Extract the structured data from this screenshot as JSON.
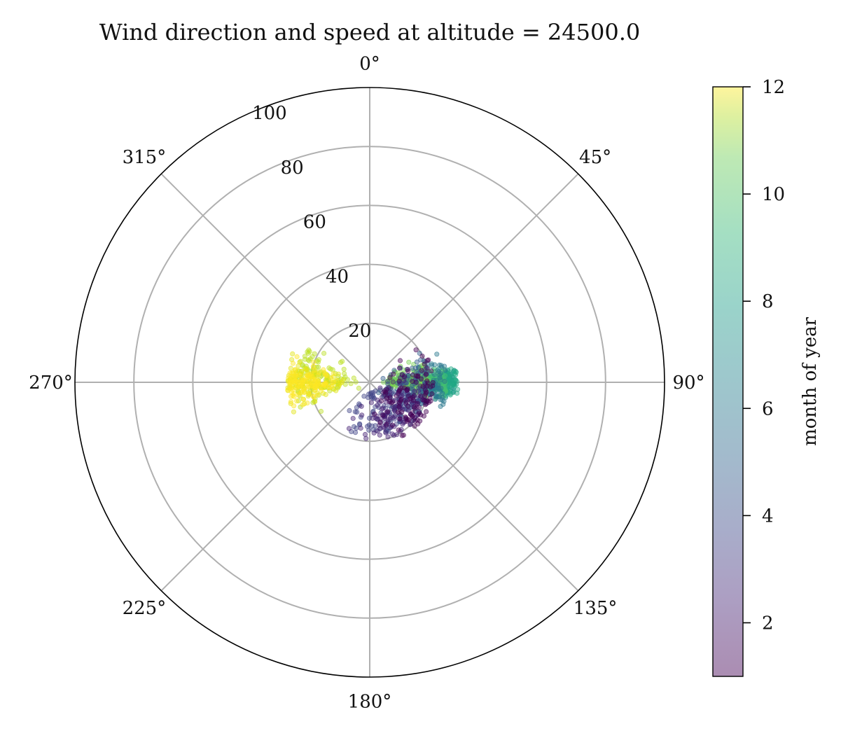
{
  "chart_data": {
    "type": "scatter",
    "subtype": "polar",
    "title": "Wind direction and speed at altitude = 24500.0",
    "theta_direction": "clockwise",
    "theta_zero": "north",
    "theta_ticks": [
      {
        "deg": 0,
        "label": "0°"
      },
      {
        "deg": 45,
        "label": "45°"
      },
      {
        "deg": 90,
        "label": "90°"
      },
      {
        "deg": 135,
        "label": "135°"
      },
      {
        "deg": 180,
        "label": "180°"
      },
      {
        "deg": 225,
        "label": "225°"
      },
      {
        "deg": 270,
        "label": "270°"
      },
      {
        "deg": 315,
        "label": "315°"
      }
    ],
    "r_range": [
      0,
      100
    ],
    "r_ticks": [
      {
        "value": 20,
        "label": "20"
      },
      {
        "value": 40,
        "label": "40"
      },
      {
        "value": 60,
        "label": "60"
      },
      {
        "value": 80,
        "label": "80"
      },
      {
        "value": 100,
        "label": "100"
      }
    ],
    "grid": true,
    "marker_alpha": 0.45,
    "colorbar": {
      "label": "month of year",
      "colormap": "viridis",
      "range": [
        1,
        12
      ],
      "ticks": [
        {
          "value": 2,
          "label": "2"
        },
        {
          "value": 4,
          "label": "4"
        },
        {
          "value": 6,
          "label": "6"
        },
        {
          "value": 8,
          "label": "8"
        },
        {
          "value": 10,
          "label": "10"
        },
        {
          "value": 12,
          "label": "12"
        }
      ],
      "placement": "right"
    },
    "series": [
      {
        "month": 1,
        "color": "#440154",
        "theta_center": 110,
        "theta_spread": 75,
        "r_min": 4,
        "r_max": 22
      },
      {
        "month": 2,
        "color": "#482475",
        "theta_center": 140,
        "theta_spread": 80,
        "r_min": 3,
        "r_max": 20
      },
      {
        "month": 3,
        "color": "#414487",
        "theta_center": 150,
        "theta_spread": 90,
        "r_min": 2,
        "r_max": 18
      },
      {
        "month": 4,
        "color": "#355f8d",
        "theta_center": 100,
        "theta_spread": 60,
        "r_min": 3,
        "r_max": 20
      },
      {
        "month": 5,
        "color": "#2a788e",
        "theta_center": 92,
        "theta_spread": 30,
        "r_min": 6,
        "r_max": 26
      },
      {
        "month": 6,
        "color": "#21908d",
        "theta_center": 90,
        "theta_spread": 16,
        "r_min": 10,
        "r_max": 29
      },
      {
        "month": 7,
        "color": "#22a884",
        "theta_center": 90,
        "theta_spread": 14,
        "r_min": 12,
        "r_max": 30
      },
      {
        "month": 8,
        "color": "#44bf70",
        "theta_center": 90,
        "theta_spread": 16,
        "r_min": 6,
        "r_max": 26
      },
      {
        "month": 9,
        "color": "#7ad151",
        "theta_center": 88,
        "theta_spread": 30,
        "r_min": 2,
        "r_max": 20
      },
      {
        "month": 10,
        "color": "#bddf26",
        "theta_center": 275,
        "theta_spread": 40,
        "r_min": 3,
        "r_max": 25
      },
      {
        "month": 11,
        "color": "#e2e418",
        "theta_center": 270,
        "theta_spread": 25,
        "r_min": 8,
        "r_max": 28
      },
      {
        "month": 12,
        "color": "#fde725",
        "theta_center": 270,
        "theta_spread": 22,
        "r_min": 10,
        "r_max": 28
      }
    ]
  }
}
